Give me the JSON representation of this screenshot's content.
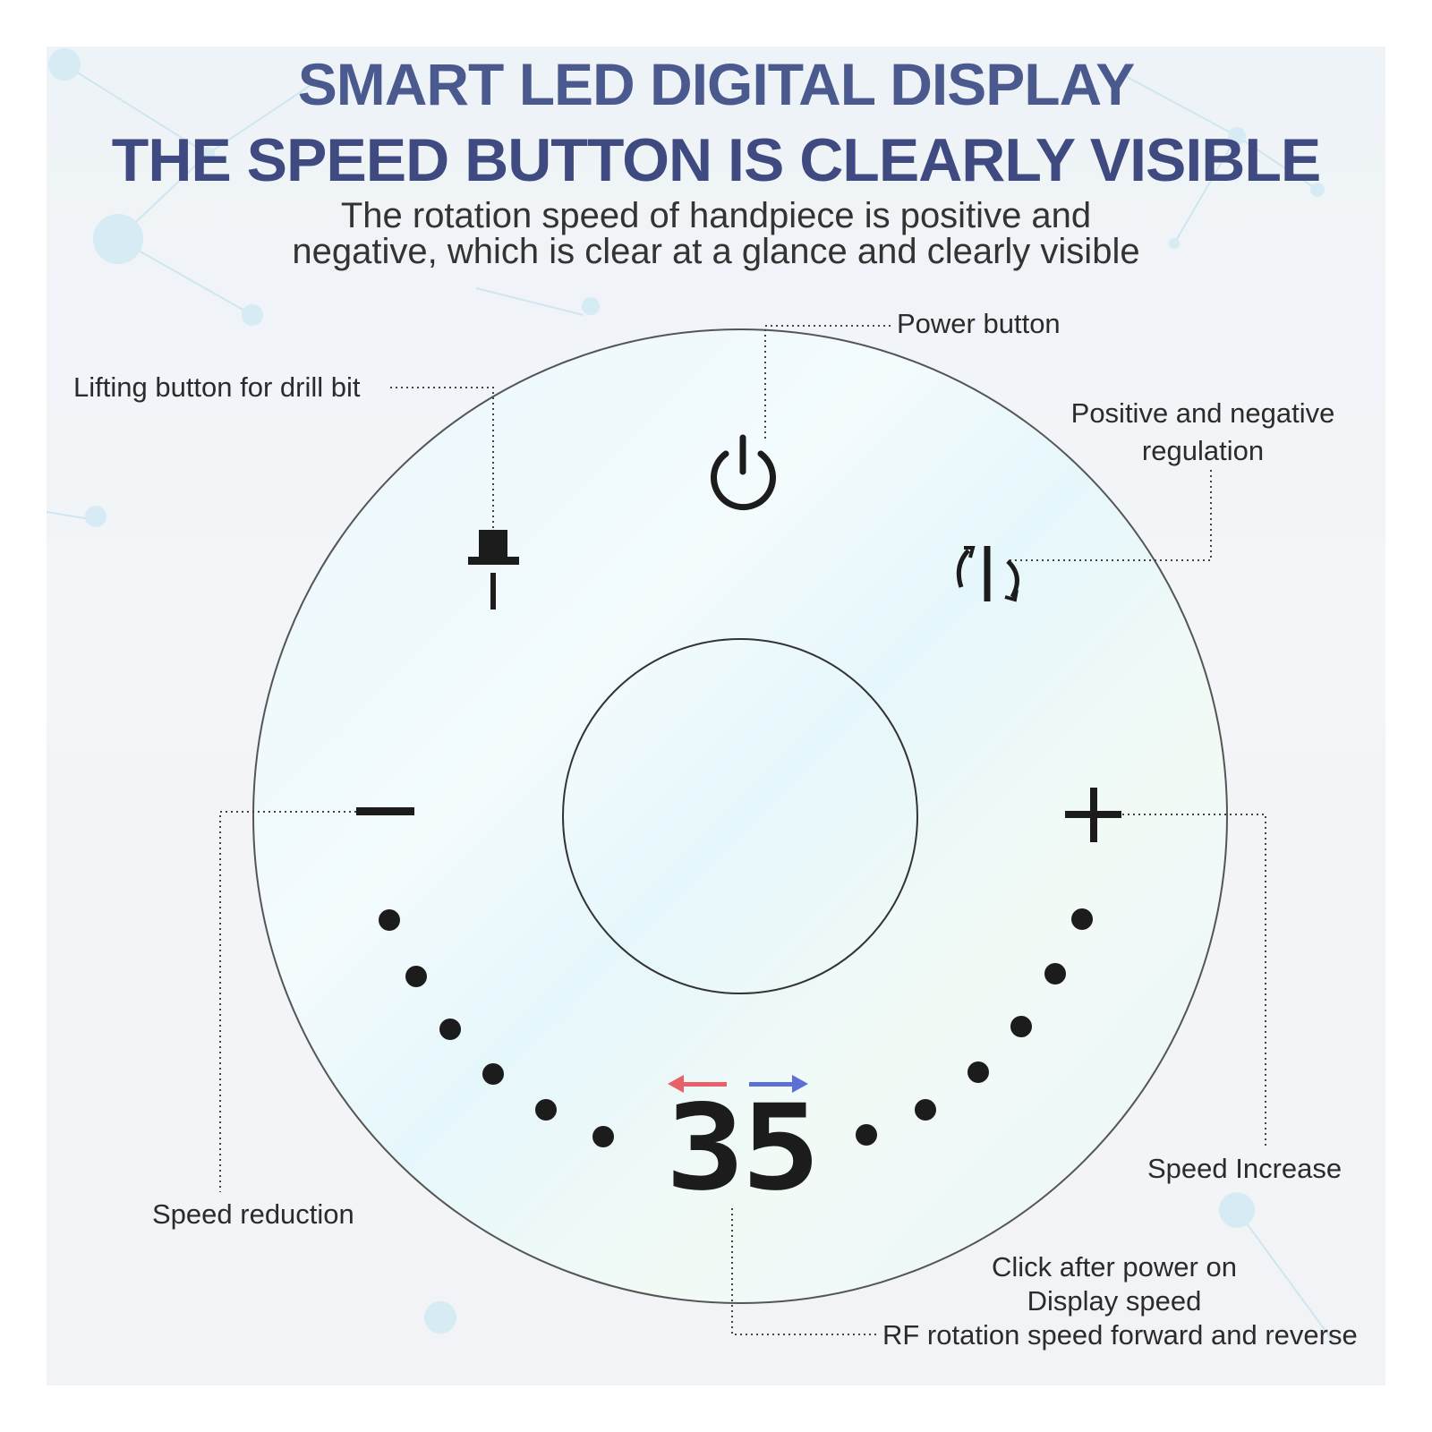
{
  "header": {
    "title_line1": "SMART LED DIGITAL DISPLAY",
    "title_line2": "THE SPEED BUTTON IS CLEARLY VISIBLE",
    "subtitle_line1": "The rotation speed of handpiece is positive and",
    "subtitle_line2": "negative, which is clear at a glance and clearly visible"
  },
  "callouts": {
    "power": "Power button",
    "lifting": "Lifting button for drill bit",
    "regulation_line1": "Positive and negative",
    "regulation_line2": "regulation",
    "speed_increase": "Speed Increase",
    "speed_reduction": "Speed reduction",
    "display_line1": "Click after power on",
    "display_line2": "Display speed",
    "display_line3": "RF rotation speed forward and reverse"
  },
  "display": {
    "speed_value": "35"
  },
  "colors": {
    "title": "#4b5a8e",
    "reverse_arrow": "#e8606a",
    "forward_arrow": "#5b6fd6",
    "ink": "#1c1c1c"
  },
  "icons": [
    "power-icon",
    "drill-bit-lift-icon",
    "direction-toggle-icon",
    "minus-icon",
    "plus-icon"
  ]
}
